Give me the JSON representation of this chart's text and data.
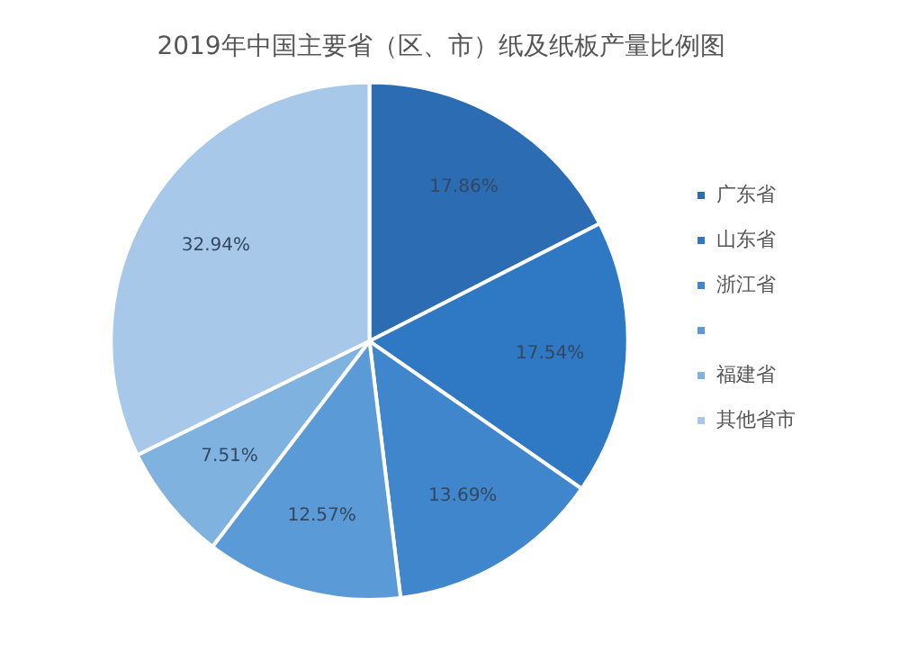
{
  "chart_data": {
    "type": "pie",
    "title": "2019年中国主要省（区、市）纸及纸板产量比例图",
    "categories": [
      "广东省",
      "山东省",
      "浙江省",
      null,
      "福建省",
      "其他省市"
    ],
    "values": [
      17.86,
      17.54,
      13.69,
      12.57,
      7.51,
      32.94
    ],
    "value_labels": [
      "17.86%",
      "17.54%",
      "13.69%",
      "12.57%",
      "7.51%",
      "32.94%"
    ],
    "colors": [
      "#2b6cb3",
      "#2f78c4",
      "#3f86cc",
      "#5a9ad6",
      "#80b2e0",
      "#a8c8ea"
    ],
    "legend": "right"
  }
}
